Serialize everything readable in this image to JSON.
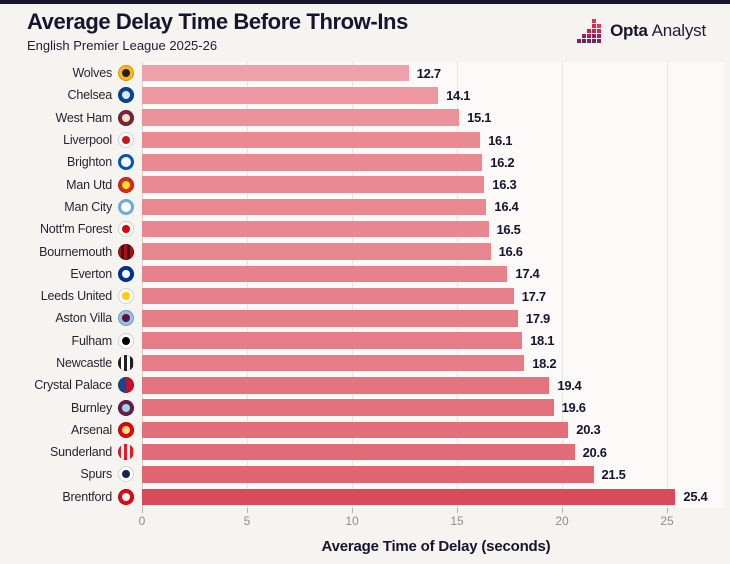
{
  "header": {
    "title": "Average Delay Time Before Throw-Ins",
    "subtitle": "English Premier League 2025-26",
    "brand": {
      "bold": "Opta",
      "regular": "Analyst"
    }
  },
  "colors": {
    "accent_dark": "#16152f",
    "background": "#f5f4f1",
    "plot_background": "#fbfaf8",
    "gridline": "#e7e5e1",
    "tick_text": "#8f8e8c",
    "bar_min_color": "#efa1a9",
    "bar_max_color": "#d94b58",
    "brand_red": "#e83249",
    "brand_purple": "#76215f"
  },
  "chart_data": {
    "type": "bar",
    "orientation": "horizontal",
    "title": "Average Delay Time Before Throw-Ins",
    "subtitle": "English Premier League 2025-26",
    "xlabel": "Average Time of Delay (seconds)",
    "ylabel": "",
    "xlim": [
      0,
      26.7
    ],
    "xticks": [
      0,
      5,
      10,
      15,
      20,
      25
    ],
    "grid": true,
    "value_unit": "seconds",
    "categories": [
      "Wolves",
      "Chelsea",
      "West Ham",
      "Liverpool",
      "Brighton",
      "Man Utd",
      "Man City",
      "Nott'm Forest",
      "Bournemouth",
      "Everton",
      "Leeds United",
      "Aston Villa",
      "Fulham",
      "Newcastle",
      "Crystal Palace",
      "Burnley",
      "Arsenal",
      "Sunderland",
      "Spurs",
      "Brentford"
    ],
    "values": [
      12.7,
      14.1,
      15.1,
      16.1,
      16.2,
      16.3,
      16.4,
      16.5,
      16.6,
      17.4,
      17.7,
      17.9,
      18.1,
      18.2,
      19.4,
      19.6,
      20.3,
      20.6,
      21.5,
      25.4
    ],
    "teams": [
      {
        "name": "Wolves",
        "value": 12.7,
        "crest": {
          "icon": "wolves-crest-icon",
          "style": "dot",
          "c1": "#fdb913",
          "c2": "#231f20"
        }
      },
      {
        "name": "Chelsea",
        "value": 14.1,
        "crest": {
          "icon": "chelsea-crest-icon",
          "style": "dot",
          "c1": "#034694",
          "c2": "#dce9f7"
        }
      },
      {
        "name": "West Ham",
        "value": 15.1,
        "crest": {
          "icon": "west-ham-crest-icon",
          "style": "dot",
          "c1": "#7a263a",
          "c2": "#f0e3c0"
        }
      },
      {
        "name": "Liverpool",
        "value": 16.1,
        "crest": {
          "icon": "liverpool-crest-icon",
          "style": "dot",
          "c1": "#ffffff",
          "c2": "#d01317"
        }
      },
      {
        "name": "Brighton",
        "value": 16.2,
        "crest": {
          "icon": "brighton-crest-icon",
          "style": "ring",
          "c1": "#ffffff",
          "c2": "#0057b8"
        }
      },
      {
        "name": "Man Utd",
        "value": 16.3,
        "crest": {
          "icon": "man-utd-crest-icon",
          "style": "dot",
          "c1": "#da291c",
          "c2": "#fbe122"
        }
      },
      {
        "name": "Man City",
        "value": 16.4,
        "crest": {
          "icon": "man-city-crest-icon",
          "style": "ring",
          "c1": "#ffffff",
          "c2": "#6cabdd"
        }
      },
      {
        "name": "Nott'm Forest",
        "value": 16.5,
        "crest": {
          "icon": "nottm-forest-crest-icon",
          "style": "dot",
          "c1": "#ffffff",
          "c2": "#dd0000"
        }
      },
      {
        "name": "Bournemouth",
        "value": 16.6,
        "crest": {
          "icon": "bournemouth-crest-icon",
          "style": "stripes",
          "c1": "#b50e12",
          "c2": "#231f20"
        }
      },
      {
        "name": "Everton",
        "value": 17.4,
        "crest": {
          "icon": "everton-crest-icon",
          "style": "dot",
          "c1": "#003399",
          "c2": "#ffffff"
        }
      },
      {
        "name": "Leeds United",
        "value": 17.7,
        "crest": {
          "icon": "leeds-united-crest-icon",
          "style": "dot",
          "c1": "#ffffff",
          "c2": "#ffcd00"
        }
      },
      {
        "name": "Aston Villa",
        "value": 17.9,
        "crest": {
          "icon": "aston-villa-crest-icon",
          "style": "dot",
          "c1": "#95bfe5",
          "c2": "#670e36"
        }
      },
      {
        "name": "Fulham",
        "value": 18.1,
        "crest": {
          "icon": "fulham-crest-icon",
          "style": "dot",
          "c1": "#ffffff",
          "c2": "#000000"
        }
      },
      {
        "name": "Newcastle",
        "value": 18.2,
        "crest": {
          "icon": "newcastle-crest-icon",
          "style": "stripes",
          "c1": "#241f20",
          "c2": "#ffffff"
        }
      },
      {
        "name": "Crystal Palace",
        "value": 19.4,
        "crest": {
          "icon": "crystal-palace-crest-icon",
          "style": "split",
          "c1": "#1b458f",
          "c2": "#c4122e"
        }
      },
      {
        "name": "Burnley",
        "value": 19.6,
        "crest": {
          "icon": "burnley-crest-icon",
          "style": "dot",
          "c1": "#6c1d45",
          "c2": "#99d6ea"
        }
      },
      {
        "name": "Arsenal",
        "value": 20.3,
        "crest": {
          "icon": "arsenal-crest-icon",
          "style": "dot",
          "c1": "#ef0107",
          "c2": "#ffe08a"
        }
      },
      {
        "name": "Sunderland",
        "value": 20.6,
        "crest": {
          "icon": "sunderland-crest-icon",
          "style": "stripes",
          "c1": "#eb172b",
          "c2": "#ffffff"
        }
      },
      {
        "name": "Spurs",
        "value": 21.5,
        "crest": {
          "icon": "spurs-crest-icon",
          "style": "dot",
          "c1": "#ffffff",
          "c2": "#132257"
        }
      },
      {
        "name": "Brentford",
        "value": 25.4,
        "crest": {
          "icon": "brentford-crest-icon",
          "style": "dot",
          "c1": "#e30613",
          "c2": "#ffffff"
        }
      }
    ]
  }
}
